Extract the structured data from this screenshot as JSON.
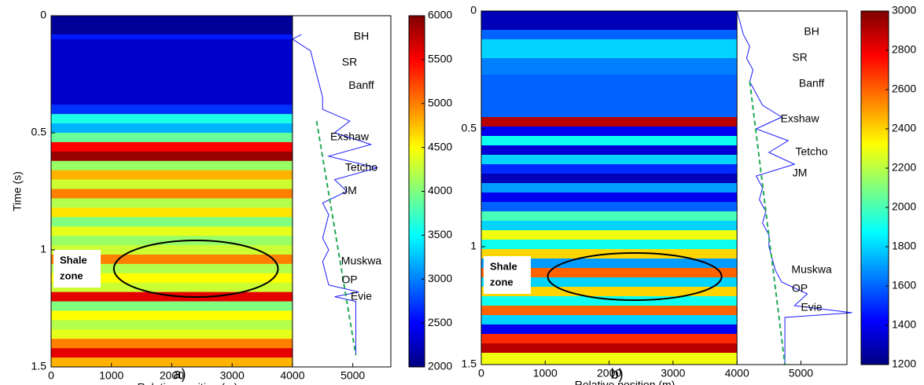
{
  "chart_data": [
    {
      "type": "heatmap",
      "panel_label": "a)",
      "xlabel": "Relative position (m)",
      "ylabel": "Time (s)",
      "xlim": [
        0,
        5630
      ],
      "xticks": [
        0,
        1000,
        2000,
        3000,
        4000,
        5000
      ],
      "ylim": [
        0,
        1.5
      ],
      "yticks": [
        0,
        0.5,
        1,
        1.5
      ],
      "y_inverted": true,
      "colormap": "jet",
      "section_xlim": [
        0,
        4000
      ],
      "colorbar": {
        "lim": [
          2000,
          6000
        ],
        "ticks": [
          2000,
          2500,
          3000,
          3500,
          4000,
          4500,
          5000,
          5500,
          6000
        ]
      },
      "rows": {
        "times": [
          0,
          0.08,
          0.1,
          0.38,
          0.42,
          0.46,
          0.5,
          0.54,
          0.58,
          0.62,
          0.66,
          0.7,
          0.74,
          0.78,
          0.82,
          0.86,
          0.9,
          0.94,
          0.98,
          1.02,
          1.06,
          1.1,
          1.14,
          1.18,
          1.22,
          1.26,
          1.3,
          1.34,
          1.38,
          1.42,
          1.46,
          1.5
        ],
        "values": [
          2100,
          2600,
          2300,
          2700,
          3600,
          3200,
          3900,
          5500,
          5900,
          4100,
          4800,
          4300,
          5000,
          4200,
          4600,
          4000,
          4400,
          4100,
          4300,
          5000,
          4200,
          4500,
          4300,
          5600,
          4000,
          4500,
          4200,
          4400,
          5000,
          5600,
          4800
        ]
      },
      "well_log": {
        "x": [
          4150,
          4000,
          4300,
          4400,
          4450,
          4500,
          4500,
          4950,
          4700,
          5300,
          4600,
          5400,
          4700,
          4900,
          4500,
          4600,
          4550,
          4500,
          4600,
          4500,
          4550,
          4600,
          5100,
          4700,
          5050,
          5050
        ],
        "y": [
          0.08,
          0.1,
          0.15,
          0.25,
          0.3,
          0.35,
          0.4,
          0.45,
          0.5,
          0.55,
          0.6,
          0.65,
          0.7,
          0.75,
          0.8,
          0.85,
          0.9,
          0.95,
          1.0,
          1.05,
          1.1,
          1.15,
          1.18,
          1.2,
          1.22,
          1.45
        ],
        "color": "#1a1aff"
      },
      "trend": {
        "x": [
          4400,
          5050
        ],
        "y": [
          0.45,
          1.45
        ],
        "color": "#22aa55"
      },
      "tops": {
        "names": [
          "BH",
          "SR",
          "Banff",
          "Exshaw",
          "Tetcho",
          "JM",
          "Muskwa",
          "OP",
          "Evie"
        ],
        "times": [
          0.09,
          0.2,
          0.3,
          0.52,
          0.65,
          0.75,
          1.05,
          1.13,
          1.2
        ]
      },
      "annotation": [
        "Shale",
        "zone"
      ]
    },
    {
      "type": "heatmap",
      "panel_label": "b)",
      "xlabel": "Relative position (m)",
      "xlim": [
        0,
        5720
      ],
      "xticks": [
        0,
        1000,
        2000,
        3000,
        4000,
        5000
      ],
      "ylim": [
        0,
        1.5
      ],
      "yticks": [
        0,
        0.5,
        1,
        1.5
      ],
      "y_inverted": true,
      "colormap": "jet",
      "section_xlim": [
        0,
        4000
      ],
      "colorbar": {
        "lim": [
          1200,
          3000
        ],
        "ticks": [
          1200,
          1400,
          1600,
          1800,
          2000,
          2200,
          2400,
          2600,
          2800,
          3000
        ]
      },
      "rows": {
        "times": [
          0,
          0.08,
          0.12,
          0.2,
          0.27,
          0.45,
          0.49,
          0.53,
          0.57,
          0.61,
          0.65,
          0.69,
          0.73,
          0.77,
          0.81,
          0.85,
          0.89,
          0.93,
          0.97,
          1.01,
          1.05,
          1.09,
          1.13,
          1.17,
          1.21,
          1.25,
          1.29,
          1.33,
          1.37,
          1.41,
          1.45,
          1.5
        ],
        "values": [
          1300,
          1600,
          1800,
          1650,
          1600,
          2900,
          1400,
          1900,
          1350,
          1800,
          1500,
          1300,
          1700,
          1400,
          1600,
          2000,
          1800,
          2300,
          1900,
          2400,
          1700,
          2600,
          1800,
          2400,
          1900,
          2600,
          1800,
          1400,
          2700,
          2900,
          2300
        ]
      },
      "well_log": {
        "x": [
          4000,
          4050,
          4100,
          4200,
          4150,
          4250,
          4200,
          4300,
          4400,
          4700,
          4300,
          4800,
          4500,
          4900,
          4300,
          4400,
          4350,
          4450,
          4400,
          4500,
          4500,
          4550,
          4600,
          4700,
          5100,
          4900,
          5800,
          4750,
          4750
        ],
        "y": [
          0.0,
          0.05,
          0.1,
          0.15,
          0.2,
          0.25,
          0.3,
          0.35,
          0.4,
          0.45,
          0.5,
          0.55,
          0.6,
          0.65,
          0.7,
          0.75,
          0.8,
          0.85,
          0.9,
          0.95,
          1.0,
          1.05,
          1.1,
          1.15,
          1.2,
          1.25,
          1.28,
          1.3,
          1.5
        ],
        "color": "#1a1aff"
      },
      "trend": {
        "x": [
          4200,
          4750
        ],
        "y": [
          0.3,
          1.5
        ],
        "color": "#22aa55"
      },
      "tops": {
        "names": [
          "BH",
          "SR",
          "Banff",
          "Exshaw",
          "Tetcho",
          "JM",
          "Muskwa",
          "OP",
          "Evie"
        ],
        "times": [
          0.09,
          0.2,
          0.31,
          0.46,
          0.6,
          0.69,
          1.1,
          1.18,
          1.26
        ]
      },
      "annotation": [
        "Shale",
        "zone"
      ]
    }
  ]
}
